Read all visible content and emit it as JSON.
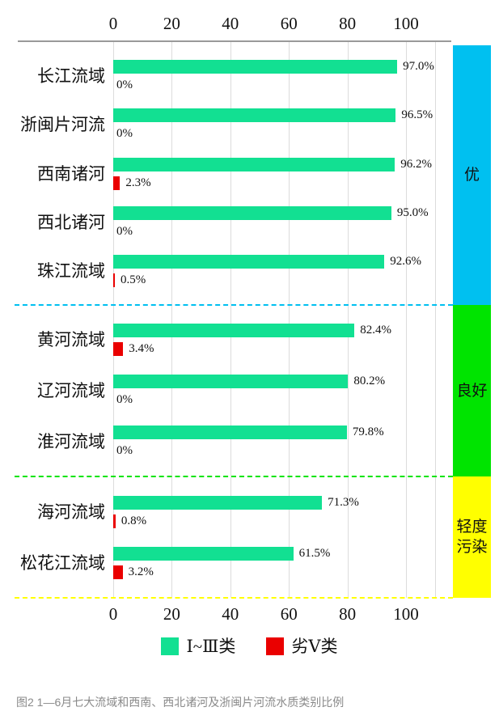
{
  "figure": {
    "caption": "图2  1—6月七大流域和西南、西北诸河及浙闽片河流水质类别比例"
  },
  "legend": [
    {
      "label": "Ⅰ~Ⅲ类",
      "color": "#12e092"
    },
    {
      "label": "劣Ⅴ类",
      "color": "#ea0000"
    }
  ],
  "colors": {
    "good_bar": "#12e092",
    "bad_bar": "#ea0000",
    "band_excellent": "#00c0f0",
    "band_good": "#00e400",
    "band_light_pollution": "#ffff00",
    "gridline": "#dcdcdc",
    "axis": "#9a9a9a",
    "caption_text": "#8a8a8a"
  },
  "chart_data": {
    "type": "bar",
    "orientation": "horizontal",
    "unit": "%",
    "title": "",
    "xlabel": "",
    "ylabel": "",
    "x_axis": {
      "ticks": [
        0,
        20,
        40,
        60,
        80,
        100
      ],
      "range": [
        0,
        110
      ],
      "shown": "top and bottom"
    },
    "grid": true,
    "legend_position": "bottom",
    "series_names": [
      "Ⅰ~Ⅲ类",
      "劣Ⅴ类"
    ],
    "sections": [
      {
        "band_label": "优",
        "band_label_display": "优",
        "band_color": "#00c0f0",
        "rows": [
          {
            "category": "长江流域",
            "good": 97.0,
            "bad": 0,
            "good_label": "97.0%",
            "bad_label": "0%"
          },
          {
            "category": "浙闽片河流",
            "good": 96.5,
            "bad": 0,
            "good_label": "96.5%",
            "bad_label": "0%"
          },
          {
            "category": "西南诸河",
            "good": 96.2,
            "bad": 2.3,
            "good_label": "96.2%",
            "bad_label": "2.3%"
          },
          {
            "category": "西北诸河",
            "good": 95.0,
            "bad": 0,
            "good_label": "95.0%",
            "bad_label": "0%"
          },
          {
            "category": "珠江流域",
            "good": 92.6,
            "bad": 0.5,
            "good_label": "92.6%",
            "bad_label": "0.5%"
          }
        ]
      },
      {
        "band_label": "良好",
        "band_label_display": "良好",
        "band_color": "#00e400",
        "rows": [
          {
            "category": "黄河流域",
            "good": 82.4,
            "bad": 3.4,
            "good_label": "82.4%",
            "bad_label": "3.4%"
          },
          {
            "category": "辽河流域",
            "good": 80.2,
            "bad": 0,
            "good_label": "80.2%",
            "bad_label": "0%"
          },
          {
            "category": "淮河流域",
            "good": 79.8,
            "bad": 0,
            "good_label": "79.8%",
            "bad_label": "0%"
          }
        ]
      },
      {
        "band_label": "轻度污染",
        "band_label_display": "轻度\n污染",
        "band_color": "#ffff00",
        "rows": [
          {
            "category": "海河流域",
            "good": 71.3,
            "bad": 0.8,
            "good_label": "71.3%",
            "bad_label": "0.8%"
          },
          {
            "category": "松花江流域",
            "good": 61.5,
            "bad": 3.2,
            "good_label": "61.5%",
            "bad_label": "3.2%"
          }
        ]
      }
    ]
  }
}
